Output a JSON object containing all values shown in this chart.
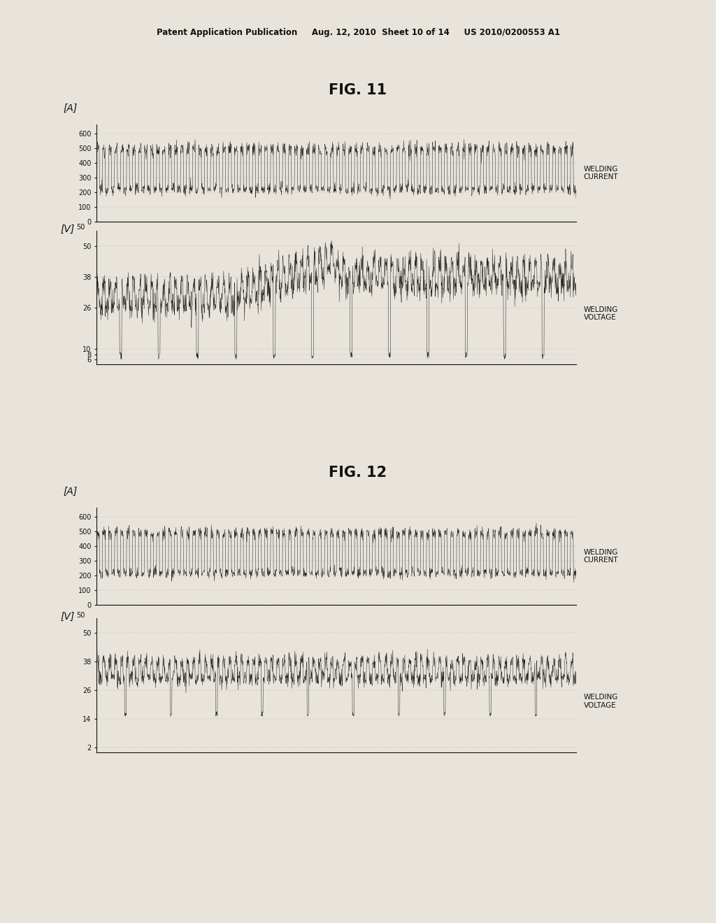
{
  "fig_title1": "FIG. 11",
  "fig_title2": "FIG. 12",
  "header_text": "Patent Application Publication     Aug. 12, 2010  Sheet 10 of 14     US 2010/0200553 A1",
  "background_color": "#e8e4dc",
  "current_ylabel": "[A]",
  "voltage_ylabel": "[V]",
  "welding_current_label": "WELDING\nCURRENT",
  "welding_voltage_label": "WELDING\nVOLTAGE",
  "current_yticks": [
    0,
    100,
    200,
    300,
    400,
    500,
    600
  ],
  "current_ylim": [
    0,
    660
  ],
  "voltage_yticks1": [
    6,
    8,
    10,
    26,
    38,
    50
  ],
  "voltage_ylim1": [
    4,
    56
  ],
  "voltage_yticks2": [
    2,
    14,
    26,
    38,
    50
  ],
  "voltage_ylim2": [
    0,
    56
  ],
  "line_color": "#1a1a1a",
  "grid_color": "#999999",
  "text_color": "#111111",
  "label_fontsize": 7.5,
  "tick_fontsize": 7,
  "title_fontsize": 15
}
